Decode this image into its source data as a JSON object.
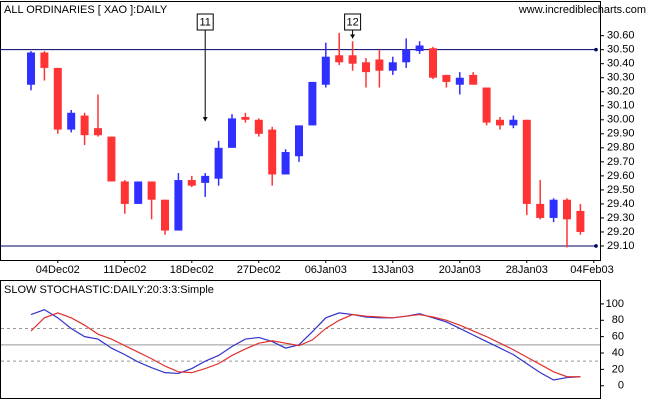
{
  "chart_data": [
    {
      "type": "candlestick",
      "title": "ALL ORDINARIES [ XAO ]:DAILY",
      "source": "www.incrediblecharts.com",
      "x": [
        "2002-12-02",
        "2002-12-03",
        "2002-12-04",
        "2002-12-05",
        "2002-12-06",
        "2002-12-09",
        "2002-12-10",
        "2002-12-11",
        "2002-12-12",
        "2002-12-13",
        "2002-12-16",
        "2002-12-17",
        "2002-12-18",
        "2002-12-19",
        "2002-12-20",
        "2002-12-23",
        "2002-12-24",
        "2002-12-27",
        "2002-12-30",
        "2002-12-31",
        "2003-01-02",
        "2003-01-03",
        "2003-01-06",
        "2003-01-07",
        "2003-01-08",
        "2003-01-09",
        "2003-01-10",
        "2003-01-13",
        "2003-01-14",
        "2003-01-15",
        "2003-01-16",
        "2003-01-17",
        "2003-01-20",
        "2003-01-21",
        "2003-01-22",
        "2003-01-23",
        "2003-01-24",
        "2003-01-28",
        "2003-01-29",
        "2003-01-30",
        "2003-01-31",
        "2003-02-03"
      ],
      "open": [
        30.25,
        30.48,
        30.37,
        29.93,
        30.03,
        29.94,
        29.88,
        29.56,
        29.4,
        29.56,
        29.43,
        29.21,
        29.57,
        29.55,
        29.58,
        29.8,
        30.02,
        30.0,
        29.93,
        29.61,
        29.74,
        29.96,
        30.25,
        30.46,
        30.46,
        30.41,
        30.43,
        30.35,
        30.41,
        30.49,
        30.51,
        30.32,
        30.25,
        30.32,
        30.23,
        30.0,
        29.96,
        30.0,
        29.4,
        29.3,
        29.43,
        29.35
      ],
      "high": [
        30.49,
        30.49,
        30.37,
        30.07,
        30.05,
        30.18,
        29.88,
        29.57,
        29.56,
        29.56,
        29.43,
        29.62,
        29.6,
        29.62,
        29.85,
        30.04,
        30.05,
        30.01,
        29.95,
        29.79,
        29.96,
        30.27,
        30.55,
        30.62,
        30.56,
        30.44,
        30.5,
        30.45,
        30.58,
        30.56,
        30.52,
        30.32,
        30.34,
        30.34,
        30.23,
        30.02,
        30.03,
        30.0,
        29.57,
        29.44,
        29.44,
        29.4
      ],
      "low": [
        30.21,
        30.28,
        29.9,
        29.91,
        29.82,
        29.88,
        29.56,
        29.33,
        29.4,
        29.29,
        29.18,
        29.21,
        29.52,
        29.45,
        29.53,
        29.8,
        29.98,
        29.88,
        29.53,
        29.61,
        29.7,
        29.96,
        30.23,
        30.39,
        30.35,
        30.23,
        30.23,
        30.32,
        30.37,
        30.47,
        30.29,
        30.23,
        30.18,
        30.25,
        29.96,
        29.93,
        29.94,
        29.32,
        29.29,
        29.27,
        29.09,
        29.18
      ],
      "close": [
        30.48,
        30.37,
        29.93,
        30.05,
        29.89,
        29.89,
        29.56,
        29.4,
        29.56,
        29.43,
        29.21,
        29.57,
        29.53,
        29.6,
        29.8,
        30.01,
        30.0,
        29.9,
        29.61,
        29.77,
        29.96,
        30.27,
        30.45,
        30.41,
        30.4,
        30.34,
        30.35,
        30.41,
        30.5,
        30.53,
        30.3,
        30.27,
        30.3,
        30.25,
        29.98,
        29.96,
        30.0,
        29.4,
        29.3,
        29.43,
        29.29,
        29.2
      ],
      "up_color": "#2f2fff",
      "down_color": "#ff3333",
      "ylim": [
        29.0,
        30.84
      ],
      "yticks": [
        {
          "value": 30.6,
          "label": "30.60"
        },
        {
          "value": 30.5,
          "label": "30.50"
        },
        {
          "value": 30.4,
          "label": "30.40"
        },
        {
          "value": 30.3,
          "label": "30.30"
        },
        {
          "value": 30.2,
          "label": "30.20"
        },
        {
          "value": 30.1,
          "label": "30.10"
        },
        {
          "value": 30.0,
          "label": "30.00"
        },
        {
          "value": 29.9,
          "label": "29.90"
        },
        {
          "value": 29.8,
          "label": "29.80"
        },
        {
          "value": 29.7,
          "label": "29.70"
        },
        {
          "value": 29.6,
          "label": "29.60"
        },
        {
          "value": 29.5,
          "label": "29.50"
        },
        {
          "value": 29.4,
          "label": "29.40"
        },
        {
          "value": 29.3,
          "label": "29.30"
        },
        {
          "value": 29.2,
          "label": "29.20"
        },
        {
          "value": 29.1,
          "label": "29.10"
        }
      ],
      "xticks": [
        {
          "value": "2002-12-04",
          "label": "04Dec02"
        },
        {
          "value": "2002-12-11",
          "label": "11Dec02"
        },
        {
          "value": "2002-12-18",
          "label": "18Dec02"
        },
        {
          "value": "2002-12-27",
          "label": "27Dec02"
        },
        {
          "value": "2003-01-06",
          "label": "06Jan03"
        },
        {
          "value": "2003-01-13",
          "label": "13Jan03"
        },
        {
          "value": "2003-01-20",
          "label": "20Jan03"
        },
        {
          "value": "2003-01-28",
          "label": "28Jan03"
        },
        {
          "value": "2003-02-04",
          "label": "04Feb03"
        }
      ],
      "hlines": [
        30.5,
        29.1
      ],
      "line_color": "#000066",
      "annotations": [
        {
          "label": "11",
          "x": "2002-12-19",
          "y": 29.99
        },
        {
          "label": "12",
          "x": "2003-01-08",
          "y": 30.58
        }
      ]
    },
    {
      "type": "line",
      "title": "SLOW STOCHASTIC:DAILY:20:3:3:Simple",
      "x": [
        "2002-12-02",
        "2002-12-03",
        "2002-12-04",
        "2002-12-05",
        "2002-12-06",
        "2002-12-09",
        "2002-12-10",
        "2002-12-11",
        "2002-12-12",
        "2002-12-13",
        "2002-12-16",
        "2002-12-17",
        "2002-12-18",
        "2002-12-19",
        "2002-12-20",
        "2002-12-23",
        "2002-12-24",
        "2002-12-27",
        "2002-12-30",
        "2002-12-31",
        "2003-01-02",
        "2003-01-03",
        "2003-01-06",
        "2003-01-07",
        "2003-01-08",
        "2003-01-09",
        "2003-01-10",
        "2003-01-13",
        "2003-01-14",
        "2003-01-15",
        "2003-01-16",
        "2003-01-17",
        "2003-01-20",
        "2003-01-21",
        "2003-01-22",
        "2003-01-23",
        "2003-01-24",
        "2003-01-28",
        "2003-01-29",
        "2003-01-30",
        "2003-01-31",
        "2003-02-03"
      ],
      "series": [
        {
          "color": "#3333cc",
          "values": [
            87,
            93,
            83,
            70,
            60,
            57,
            46,
            38,
            29,
            22,
            16,
            15,
            21,
            30,
            37,
            48,
            57,
            59,
            54,
            46,
            50,
            66,
            83,
            89,
            87,
            84,
            83,
            83,
            85,
            88,
            83,
            78,
            70,
            62,
            54,
            46,
            38,
            27,
            16,
            7,
            10,
            11
          ]
        },
        {
          "color": "#e03030",
          "values": [
            67,
            83,
            89,
            83,
            74,
            63,
            57,
            49,
            41,
            33,
            24,
            17,
            16,
            21,
            27,
            37,
            45,
            52,
            55,
            52,
            49,
            56,
            70,
            80,
            87,
            85,
            84,
            83,
            85,
            87,
            84,
            80,
            74,
            67,
            60,
            52,
            44,
            35,
            26,
            17,
            11,
            11
          ]
        }
      ],
      "ylim": [
        -15,
        128
      ],
      "yticks": [
        100,
        80,
        60,
        40,
        20,
        0
      ],
      "dashed_levels": [
        70,
        30
      ],
      "solid_levels": [
        50
      ]
    }
  ]
}
